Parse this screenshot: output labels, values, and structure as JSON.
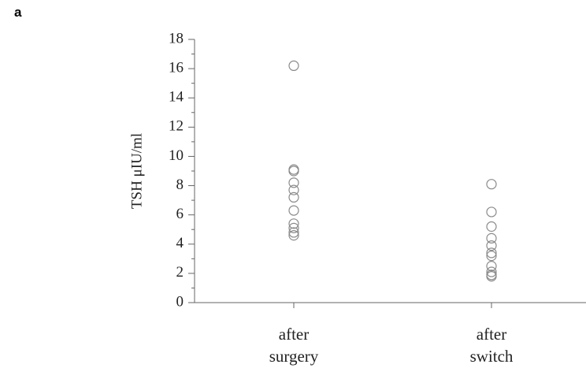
{
  "panel_label": "a",
  "chart_data": {
    "type": "strip",
    "ylabel": "TSH μIU/ml",
    "categories": [
      "after\nsurgery",
      "after\nswitch"
    ],
    "values": [
      [
        16.2,
        9.1,
        9.0,
        8.2,
        7.7,
        7.2,
        6.3,
        5.4,
        5.1,
        4.8,
        4.6
      ],
      [
        8.1,
        6.2,
        5.2,
        4.4,
        3.9,
        3.4,
        3.2,
        2.5,
        2.1,
        1.9,
        1.8
      ]
    ],
    "color": "#8a8a8a",
    "ylim": [
      0,
      18
    ],
    "yticks": [
      0,
      2,
      4,
      6,
      8,
      10,
      12,
      14,
      16,
      18
    ],
    "minor_yticks": [
      1,
      3,
      5,
      7,
      9,
      11,
      13,
      15,
      17
    ]
  }
}
